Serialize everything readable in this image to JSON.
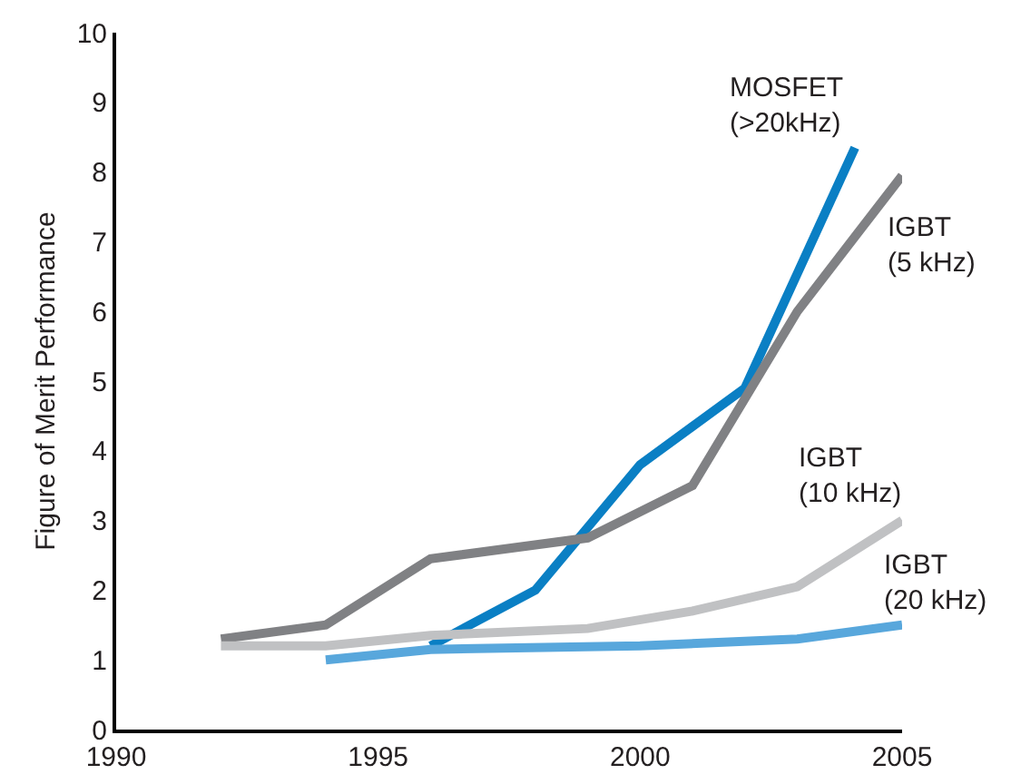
{
  "chart_data": {
    "type": "line",
    "ylabel": "Figure of Merit Performance",
    "xlim": [
      1990,
      2005
    ],
    "xticks": [
      1990,
      1995,
      2000,
      2005
    ],
    "ylim": [
      0,
      10
    ],
    "yticks": [
      0,
      1,
      2,
      3,
      4,
      5,
      6,
      7,
      8,
      9,
      10
    ],
    "grid": false,
    "legend": false,
    "marker": "none",
    "line_style": "solid",
    "series": [
      {
        "name": "MOSFET\n(>20kHz)",
        "color": "#0a7fc4",
        "x": [
          1996,
          1998,
          2000,
          2002,
          2004.1
        ],
        "values": [
          1.2,
          2.0,
          3.8,
          4.9,
          8.35
        ]
      },
      {
        "name": "IGBT\n(5 kHz)",
        "color": "#808184",
        "x": [
          1992,
          1994,
          1996,
          1999,
          2001,
          2003,
          2005
        ],
        "values": [
          1.3,
          1.5,
          2.45,
          2.75,
          3.5,
          6.0,
          7.95
        ]
      },
      {
        "name": "IGBT\n(10 kHz)",
        "color": "#c0c1c3",
        "x": [
          1992,
          1994,
          1996,
          1999,
          2001,
          2003,
          2005
        ],
        "values": [
          1.2,
          1.2,
          1.35,
          1.45,
          1.7,
          2.05,
          3.0
        ]
      },
      {
        "name": "IGBT\n(20 kHz)",
        "color": "#58a7dc",
        "x": [
          1994,
          1996,
          2000,
          2003,
          2005
        ],
        "values": [
          1.0,
          1.15,
          1.2,
          1.3,
          1.5
        ]
      }
    ]
  }
}
